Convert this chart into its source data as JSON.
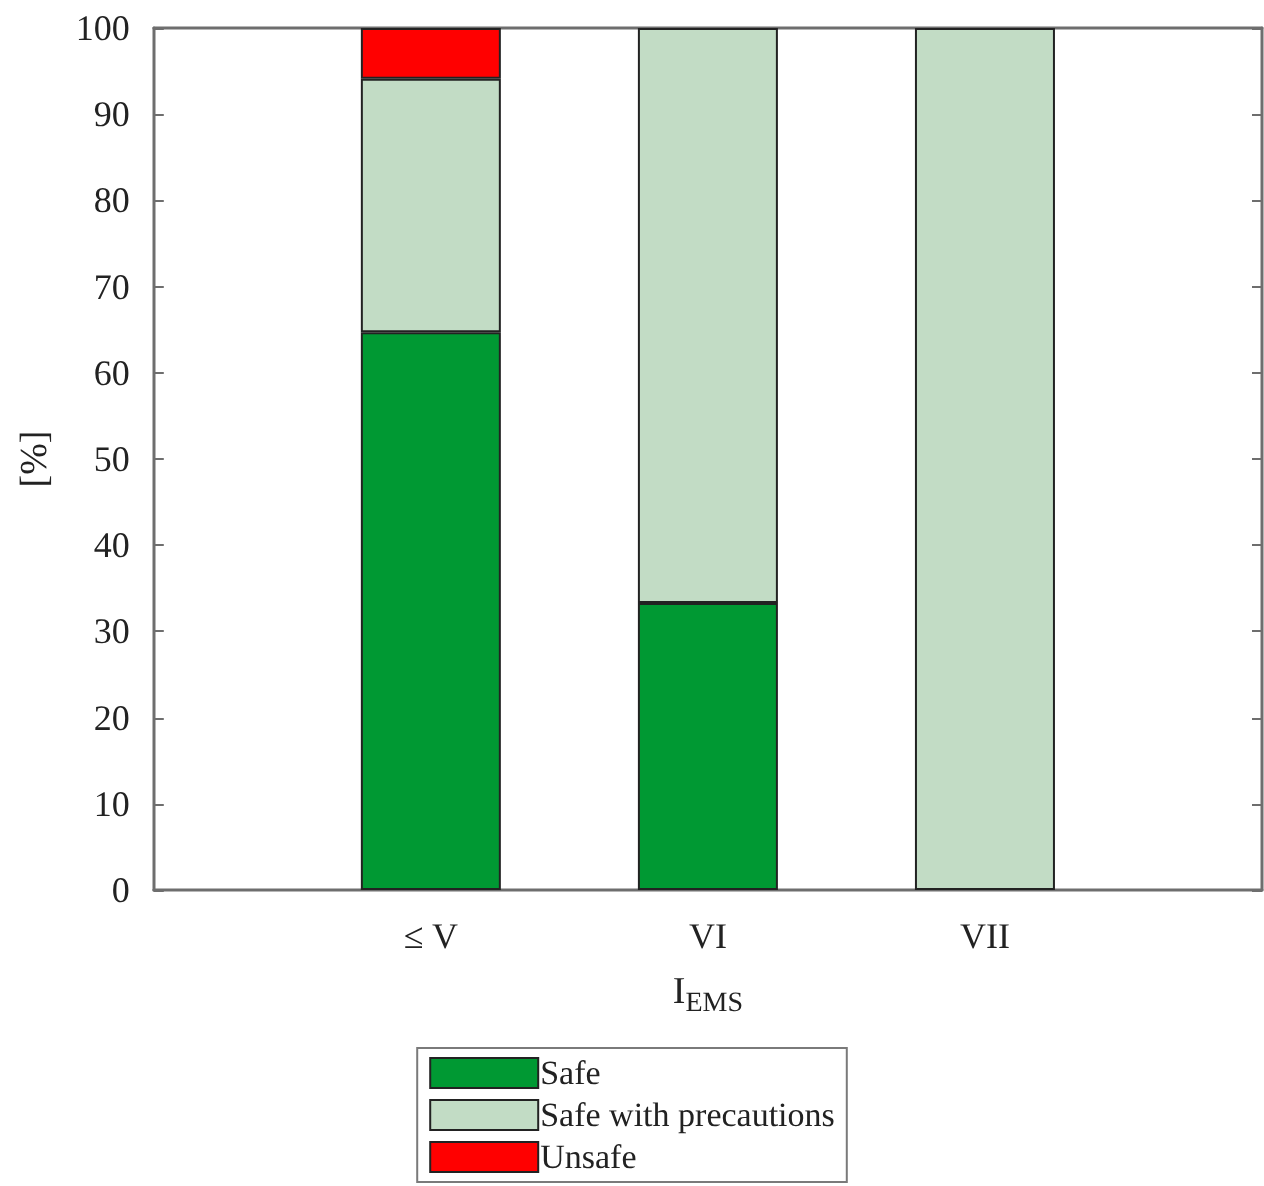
{
  "chart_data": {
    "type": "bar",
    "stacked": true,
    "categories": [
      "≤ V",
      "VI",
      "VII"
    ],
    "series": [
      {
        "name": "Safe",
        "color": "#009933",
        "values": [
          64.7,
          33.3,
          0
        ]
      },
      {
        "name": "Safe with precautions",
        "color": "#c2dcc5",
        "values": [
          29.4,
          66.7,
          100
        ]
      },
      {
        "name": "Unsafe",
        "color": "#ff0000",
        "values": [
          5.9,
          0,
          0
        ]
      }
    ],
    "xlabel": "I$_{EMS}$",
    "ylabel": "[%]",
    "ylim": [
      0,
      100
    ],
    "yticks": [
      0,
      10,
      20,
      30,
      40,
      50,
      60,
      70,
      80,
      90,
      100
    ],
    "legend": "bottom"
  }
}
